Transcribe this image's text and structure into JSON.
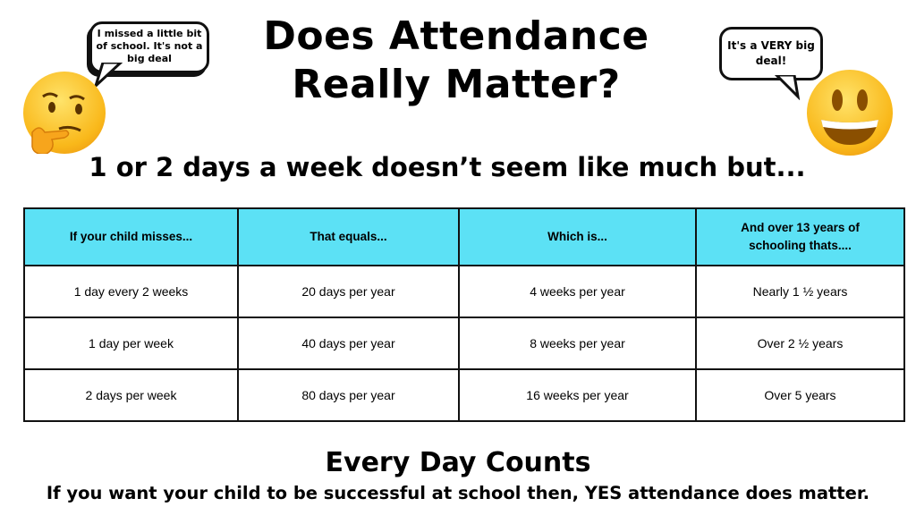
{
  "title": "Does Attendance Really Matter?",
  "subtitle": "1 or 2 days a week doesn’t seem like much but...",
  "bubbles": {
    "left": "I missed a little bit of school. It's not a big deal",
    "right": "It's a VERY big deal!"
  },
  "icons": {
    "left": "thinking-face-emoji",
    "right": "grinning-face-emoji"
  },
  "table": {
    "header_color": "#5ce1f5",
    "headers": [
      "If your child misses...",
      "That equals...",
      "Which is...",
      "And over 13 years of schooling thats...."
    ],
    "rows": [
      [
        "1 day every 2 weeks",
        "20 days per year",
        "4 weeks per year",
        "Nearly 1 ½ years"
      ],
      [
        "1 day per week",
        "40 days per year",
        "8 weeks per year",
        "Over 2 ½ years"
      ],
      [
        "2 days per week",
        "80 days per year",
        "16 weeks per year",
        "Over 5 years"
      ]
    ]
  },
  "footer": {
    "heading": "Every Day Counts",
    "text": "If you want your child to be successful at school then, YES attendance does matter."
  }
}
